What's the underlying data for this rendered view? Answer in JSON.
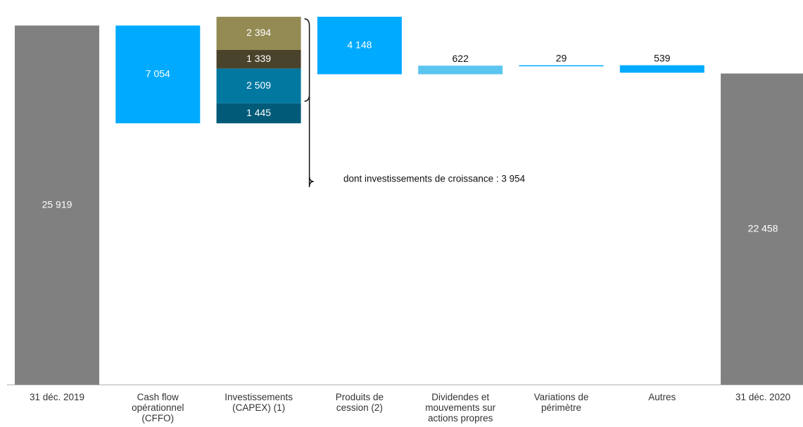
{
  "chart_data": {
    "type": "waterfall",
    "categories": [
      "31 déc. 2019",
      "Cash flow opérationnel (CFFO)",
      "Investissements (CAPEX) (1)",
      "Produits de cession (2)",
      "Dividendes et mouvements sur actions propres",
      "Variations de périmètre",
      "Autres",
      "31 déc. 2020"
    ],
    "values": [
      25919,
      -7054,
      [
        1445,
        2509,
        1339,
        2394
      ],
      -4148,
      622,
      29,
      -539,
      22458
    ],
    "value_labels": [
      "25 919",
      "7 054",
      [
        "1 445",
        "2 509",
        "1 339",
        "2 394"
      ],
      "4 148",
      "622",
      "29",
      "539",
      "22 458"
    ],
    "totals": [
      true,
      false,
      false,
      false,
      false,
      false,
      false,
      true
    ],
    "colors": [
      "#808080",
      "#00aaff",
      [
        "#005a78",
        "#0078a0",
        "#4a432b",
        "#948b54"
      ],
      "#00aaff",
      "#5bc5f0",
      "#00aaff",
      "#00aaff",
      "#808080"
    ],
    "ylim": [
      0,
      27000
    ],
    "annotation": "dont investissements de croissance : 3 954"
  }
}
